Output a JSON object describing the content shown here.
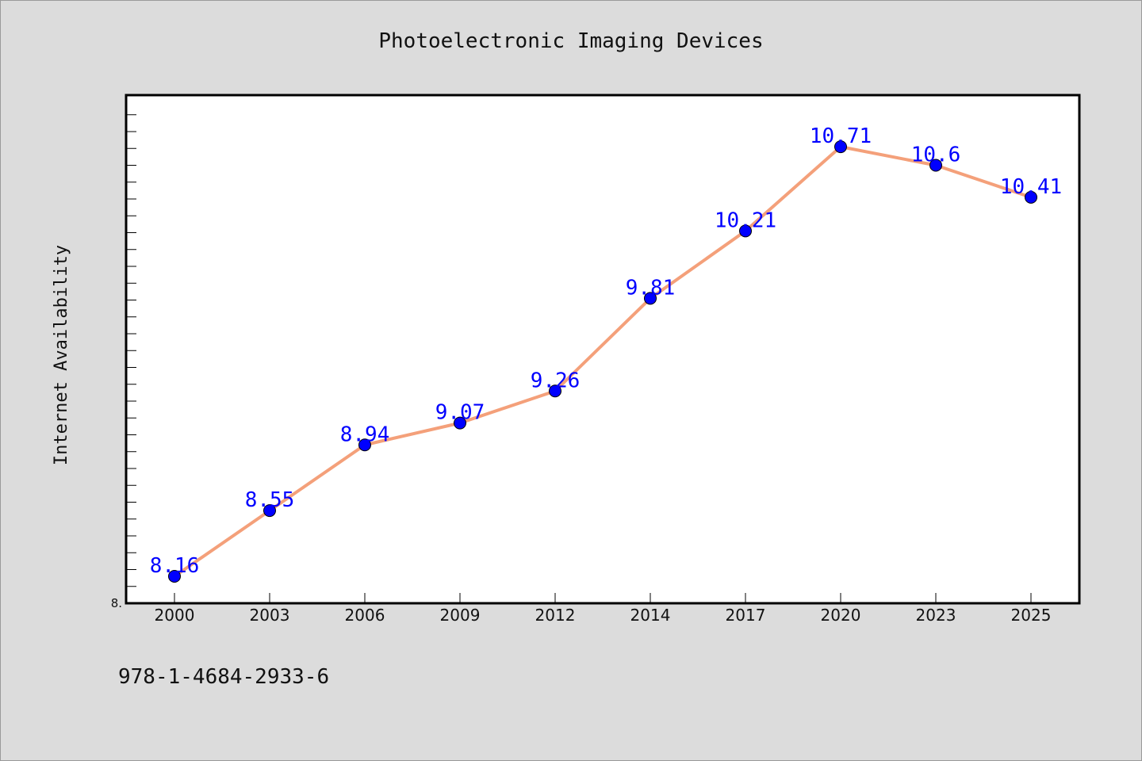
{
  "chart_data": {
    "type": "line",
    "title": "Photoelectronic Imaging Devices",
    "xlabel": "",
    "ylabel": "Internet Availability",
    "categories": [
      "2000",
      "2003",
      "2006",
      "2009",
      "2012",
      "2014",
      "2017",
      "2020",
      "2023",
      "2025"
    ],
    "series": [
      {
        "values": [
          8.16,
          8.55,
          8.94,
          9.07,
          9.26,
          9.81,
          10.21,
          10.71,
          10.6,
          10.41
        ]
      }
    ],
    "ylim": [
      8.0,
      11.0
    ],
    "yticks_labeled": [
      "8."
    ],
    "grid": false,
    "legend": "none",
    "line_color": "#f4a07a",
    "marker_color": "#0000ff",
    "label_color": "#0000ff"
  },
  "footer": {
    "isbn": "978-1-4684-2933-6"
  }
}
